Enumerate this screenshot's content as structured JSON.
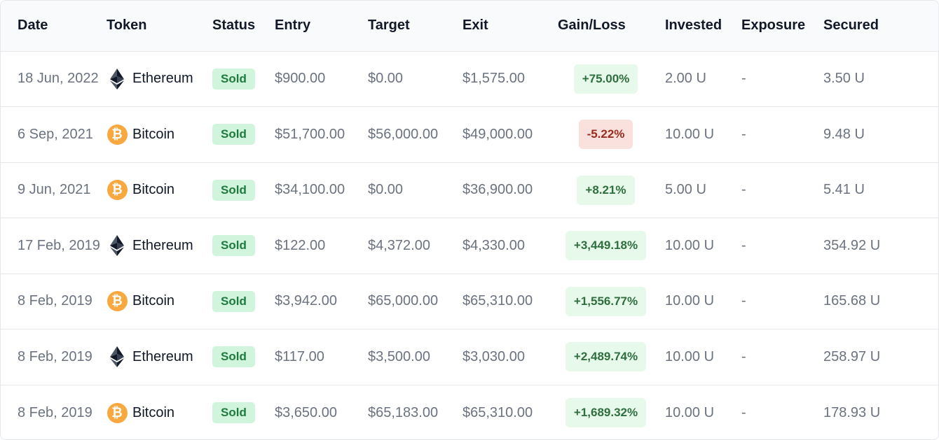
{
  "headers": {
    "date": "Date",
    "token": "Token",
    "status": "Status",
    "entry": "Entry",
    "target": "Target",
    "exit": "Exit",
    "gain": "Gain/Loss",
    "invested": "Invested",
    "exposure": "Exposure",
    "secured": "Secured"
  },
  "colors": {
    "bitcoin": "#f7a940",
    "ethereum": "#1f2937",
    "positive_bg": "#e6f9ea",
    "negative_bg": "#fbe1dd",
    "sold_bg": "#d1f5dc"
  },
  "rows": [
    {
      "date": "18 Jun, 2022",
      "token": "Ethereum",
      "icon": "ethereum-icon",
      "status": "Sold",
      "entry": "$900.00",
      "target": "$0.00",
      "exit": "$1,575.00",
      "gain": "+75.00%",
      "sign": "pos",
      "invested": "2.00 U",
      "exposure": "-",
      "secured": "3.50 U"
    },
    {
      "date": "6 Sep, 2021",
      "token": "Bitcoin",
      "icon": "bitcoin-icon",
      "status": "Sold",
      "entry": "$51,700.00",
      "target": "$56,000.00",
      "exit": "$49,000.00",
      "gain": "-5.22%",
      "sign": "neg",
      "invested": "10.00 U",
      "exposure": "-",
      "secured": "9.48 U"
    },
    {
      "date": "9 Jun, 2021",
      "token": "Bitcoin",
      "icon": "bitcoin-icon",
      "status": "Sold",
      "entry": "$34,100.00",
      "target": "$0.00",
      "exit": "$36,900.00",
      "gain": "+8.21%",
      "sign": "pos",
      "invested": "5.00 U",
      "exposure": "-",
      "secured": "5.41 U"
    },
    {
      "date": "17 Feb, 2019",
      "token": "Ethereum",
      "icon": "ethereum-icon",
      "status": "Sold",
      "entry": "$122.00",
      "target": "$4,372.00",
      "exit": "$4,330.00",
      "gain": "+3,449.18%",
      "sign": "pos",
      "invested": "10.00 U",
      "exposure": "-",
      "secured": "354.92 U"
    },
    {
      "date": "8 Feb, 2019",
      "token": "Bitcoin",
      "icon": "bitcoin-icon",
      "status": "Sold",
      "entry": "$3,942.00",
      "target": "$65,000.00",
      "exit": "$65,310.00",
      "gain": "+1,556.77%",
      "sign": "pos",
      "invested": "10.00 U",
      "exposure": "-",
      "secured": "165.68 U"
    },
    {
      "date": "8 Feb, 2019",
      "token": "Ethereum",
      "icon": "ethereum-icon",
      "status": "Sold",
      "entry": "$117.00",
      "target": "$3,500.00",
      "exit": "$3,030.00",
      "gain": "+2,489.74%",
      "sign": "pos",
      "invested": "10.00 U",
      "exposure": "-",
      "secured": "258.97 U"
    },
    {
      "date": "8 Feb, 2019",
      "token": "Bitcoin",
      "icon": "bitcoin-icon",
      "status": "Sold",
      "entry": "$3,650.00",
      "target": "$65,183.00",
      "exit": "$65,310.00",
      "gain": "+1,689.32%",
      "sign": "pos",
      "invested": "10.00 U",
      "exposure": "-",
      "secured": "178.93 U"
    }
  ]
}
